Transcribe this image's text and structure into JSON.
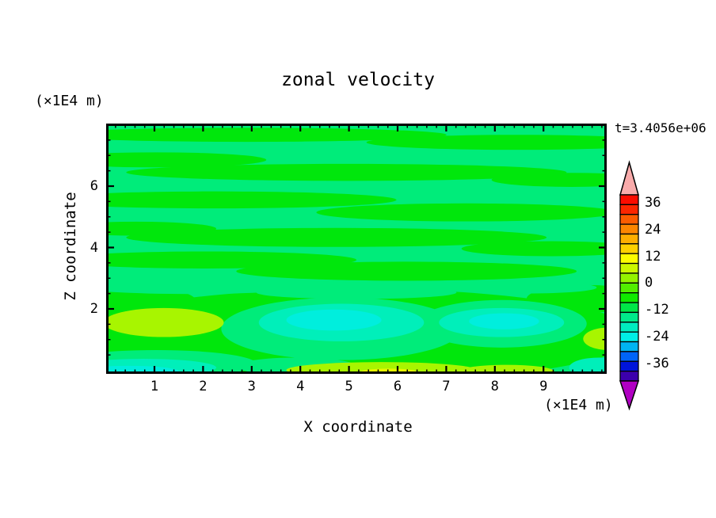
{
  "header": {
    "title": "zonal velocity",
    "time_label": "t=3.4056e+06"
  },
  "axes": {
    "x": {
      "label": "X coordinate",
      "unit": "(×1E4 m)",
      "tick_labels": [
        "1",
        "2",
        "3",
        "4",
        "5",
        "6",
        "7",
        "8",
        "9"
      ],
      "tick_values": [
        1,
        2,
        3,
        4,
        5,
        6,
        7,
        8,
        9
      ],
      "minor_step": 0.2,
      "range": [
        0,
        10.3
      ]
    },
    "y": {
      "label": "Z coordinate",
      "unit": "(×1E4 m)",
      "tick_labels": [
        "6",
        "4",
        "2"
      ],
      "tick_values": [
        6,
        4,
        2
      ],
      "minor_step": 0.5,
      "range": [
        0,
        8.05
      ]
    }
  },
  "colorbar": {
    "labels": [
      "36",
      "24",
      "12",
      "0",
      "-12",
      "-24",
      "-36"
    ],
    "label_values": [
      36,
      24,
      12,
      0,
      -12,
      -24,
      -36
    ],
    "top_arrow_color": "#f9abab",
    "bottom_arrow_color": "#b000c2",
    "box_colors": [
      "#fb0c00",
      "#fc2600",
      "#fc5c00",
      "#fd8600",
      "#feae00",
      "#fed000",
      "#fcfc00",
      "#ccf800",
      "#94f300",
      "#52ee00",
      "#10e900",
      "#00e748",
      "#00ea8a",
      "#00edc0",
      "#00eee6",
      "#00b4f2",
      "#0064f8",
      "#0014da",
      "#3c00ac"
    ]
  },
  "chart_data": {
    "type": "heatmap",
    "title": "zonal velocity",
    "xlabel": "X coordinate (×1E4 m)",
    "ylabel": "Z coordinate (×1E4 m)",
    "time_annotation": "t=3.4056e+06",
    "x_range": [
      0,
      10.3
    ],
    "y_range": [
      0,
      8.05
    ],
    "grid": false,
    "legend_position": "right",
    "colorbar_tick_values": [
      36,
      24,
      12,
      0,
      -12,
      -24,
      -36
    ],
    "field_summary": "Zonal velocity cross-section; values mostly between -12 and +12: wavy horizontal bands near 0 (green/spring-green), cyan/aquamarine minima patches near z=1-2 at x=3-5 and x=6-8, chartreuse/yellow maxima near bottom-left (x<2,z~1.5), along the bottom boundary (x=3-7) and right edge.",
    "palette": {
      "green": "#00e70c",
      "spring": "#00ec7a",
      "aqua": "#00efba",
      "turquoise": "#00eedd",
      "chartreuse": "#a8f500",
      "yellow": "#e6f900"
    },
    "background_value_color": "spring",
    "regions": [
      {
        "c": "green",
        "e": [
          0.28,
          0.045,
          0.4,
          0.028
        ]
      },
      {
        "c": "green",
        "e": [
          0.82,
          0.075,
          0.3,
          0.03
        ]
      },
      {
        "c": "green",
        "e": [
          0.1,
          0.145,
          0.22,
          0.03
        ]
      },
      {
        "c": "green",
        "e": [
          0.48,
          0.195,
          0.44,
          0.034
        ]
      },
      {
        "c": "green",
        "e": [
          0.93,
          0.225,
          0.16,
          0.028
        ]
      },
      {
        "c": "green",
        "e": [
          0.22,
          0.305,
          0.36,
          0.034
        ]
      },
      {
        "c": "green",
        "e": [
          0.72,
          0.355,
          0.3,
          0.036
        ]
      },
      {
        "c": "green",
        "e": [
          0.06,
          0.42,
          0.16,
          0.028
        ]
      },
      {
        "c": "green",
        "e": [
          0.46,
          0.455,
          0.42,
          0.038
        ]
      },
      {
        "c": "green",
        "e": [
          0.89,
          0.5,
          0.18,
          0.03
        ]
      },
      {
        "c": "green",
        "e": [
          0.2,
          0.545,
          0.3,
          0.034
        ]
      },
      {
        "c": "green",
        "e": [
          0.6,
          0.59,
          0.34,
          0.038
        ]
      },
      {
        "c": "green",
        "e": [
          0.5,
          0.845,
          0.56,
          0.185
        ]
      },
      {
        "c": "green",
        "e": [
          0.05,
          0.71,
          0.13,
          0.06
        ]
      },
      {
        "c": "green",
        "e": [
          0.96,
          0.7,
          0.12,
          0.055
        ]
      },
      {
        "c": "spring",
        "e": [
          0.17,
          0.655,
          0.22,
          0.026
        ]
      },
      {
        "c": "spring",
        "e": [
          0.5,
          0.675,
          0.2,
          0.026
        ]
      },
      {
        "c": "spring",
        "e": [
          0.84,
          0.655,
          0.14,
          0.024
        ]
      },
      {
        "c": "spring",
        "e": [
          0.47,
          0.82,
          0.24,
          0.125
        ]
      },
      {
        "c": "spring",
        "e": [
          0.79,
          0.8,
          0.17,
          0.095
        ]
      },
      {
        "c": "spring",
        "e": [
          0.1,
          0.96,
          0.2,
          0.055
        ]
      },
      {
        "c": "spring",
        "e": [
          0.38,
          0.97,
          0.12,
          0.035
        ]
      },
      {
        "c": "aqua",
        "e": [
          0.47,
          0.795,
          0.165,
          0.075
        ]
      },
      {
        "c": "aqua",
        "e": [
          0.79,
          0.795,
          0.125,
          0.058
        ]
      },
      {
        "c": "aqua",
        "e": [
          0.075,
          0.975,
          0.145,
          0.035
        ]
      },
      {
        "c": "aqua",
        "e": [
          0.985,
          0.975,
          0.06,
          0.04
        ]
      },
      {
        "c": "turquoise",
        "e": [
          0.455,
          0.785,
          0.095,
          0.042
        ]
      },
      {
        "c": "turquoise",
        "e": [
          0.795,
          0.79,
          0.07,
          0.032
        ]
      },
      {
        "c": "turquoise",
        "e": [
          0.045,
          0.99,
          0.1,
          0.022
        ]
      },
      {
        "c": "chartreuse",
        "e": [
          0.115,
          0.795,
          0.12,
          0.058
        ]
      },
      {
        "c": "chartreuse",
        "e": [
          0.55,
          0.985,
          0.19,
          0.032
        ]
      },
      {
        "c": "chartreuse",
        "e": [
          0.8,
          0.99,
          0.095,
          0.026
        ]
      },
      {
        "c": "chartreuse",
        "e": [
          1.003,
          0.86,
          0.05,
          0.045
        ]
      },
      {
        "c": "yellow",
        "e": [
          0.565,
          0.995,
          0.06,
          0.016
        ]
      }
    ]
  }
}
